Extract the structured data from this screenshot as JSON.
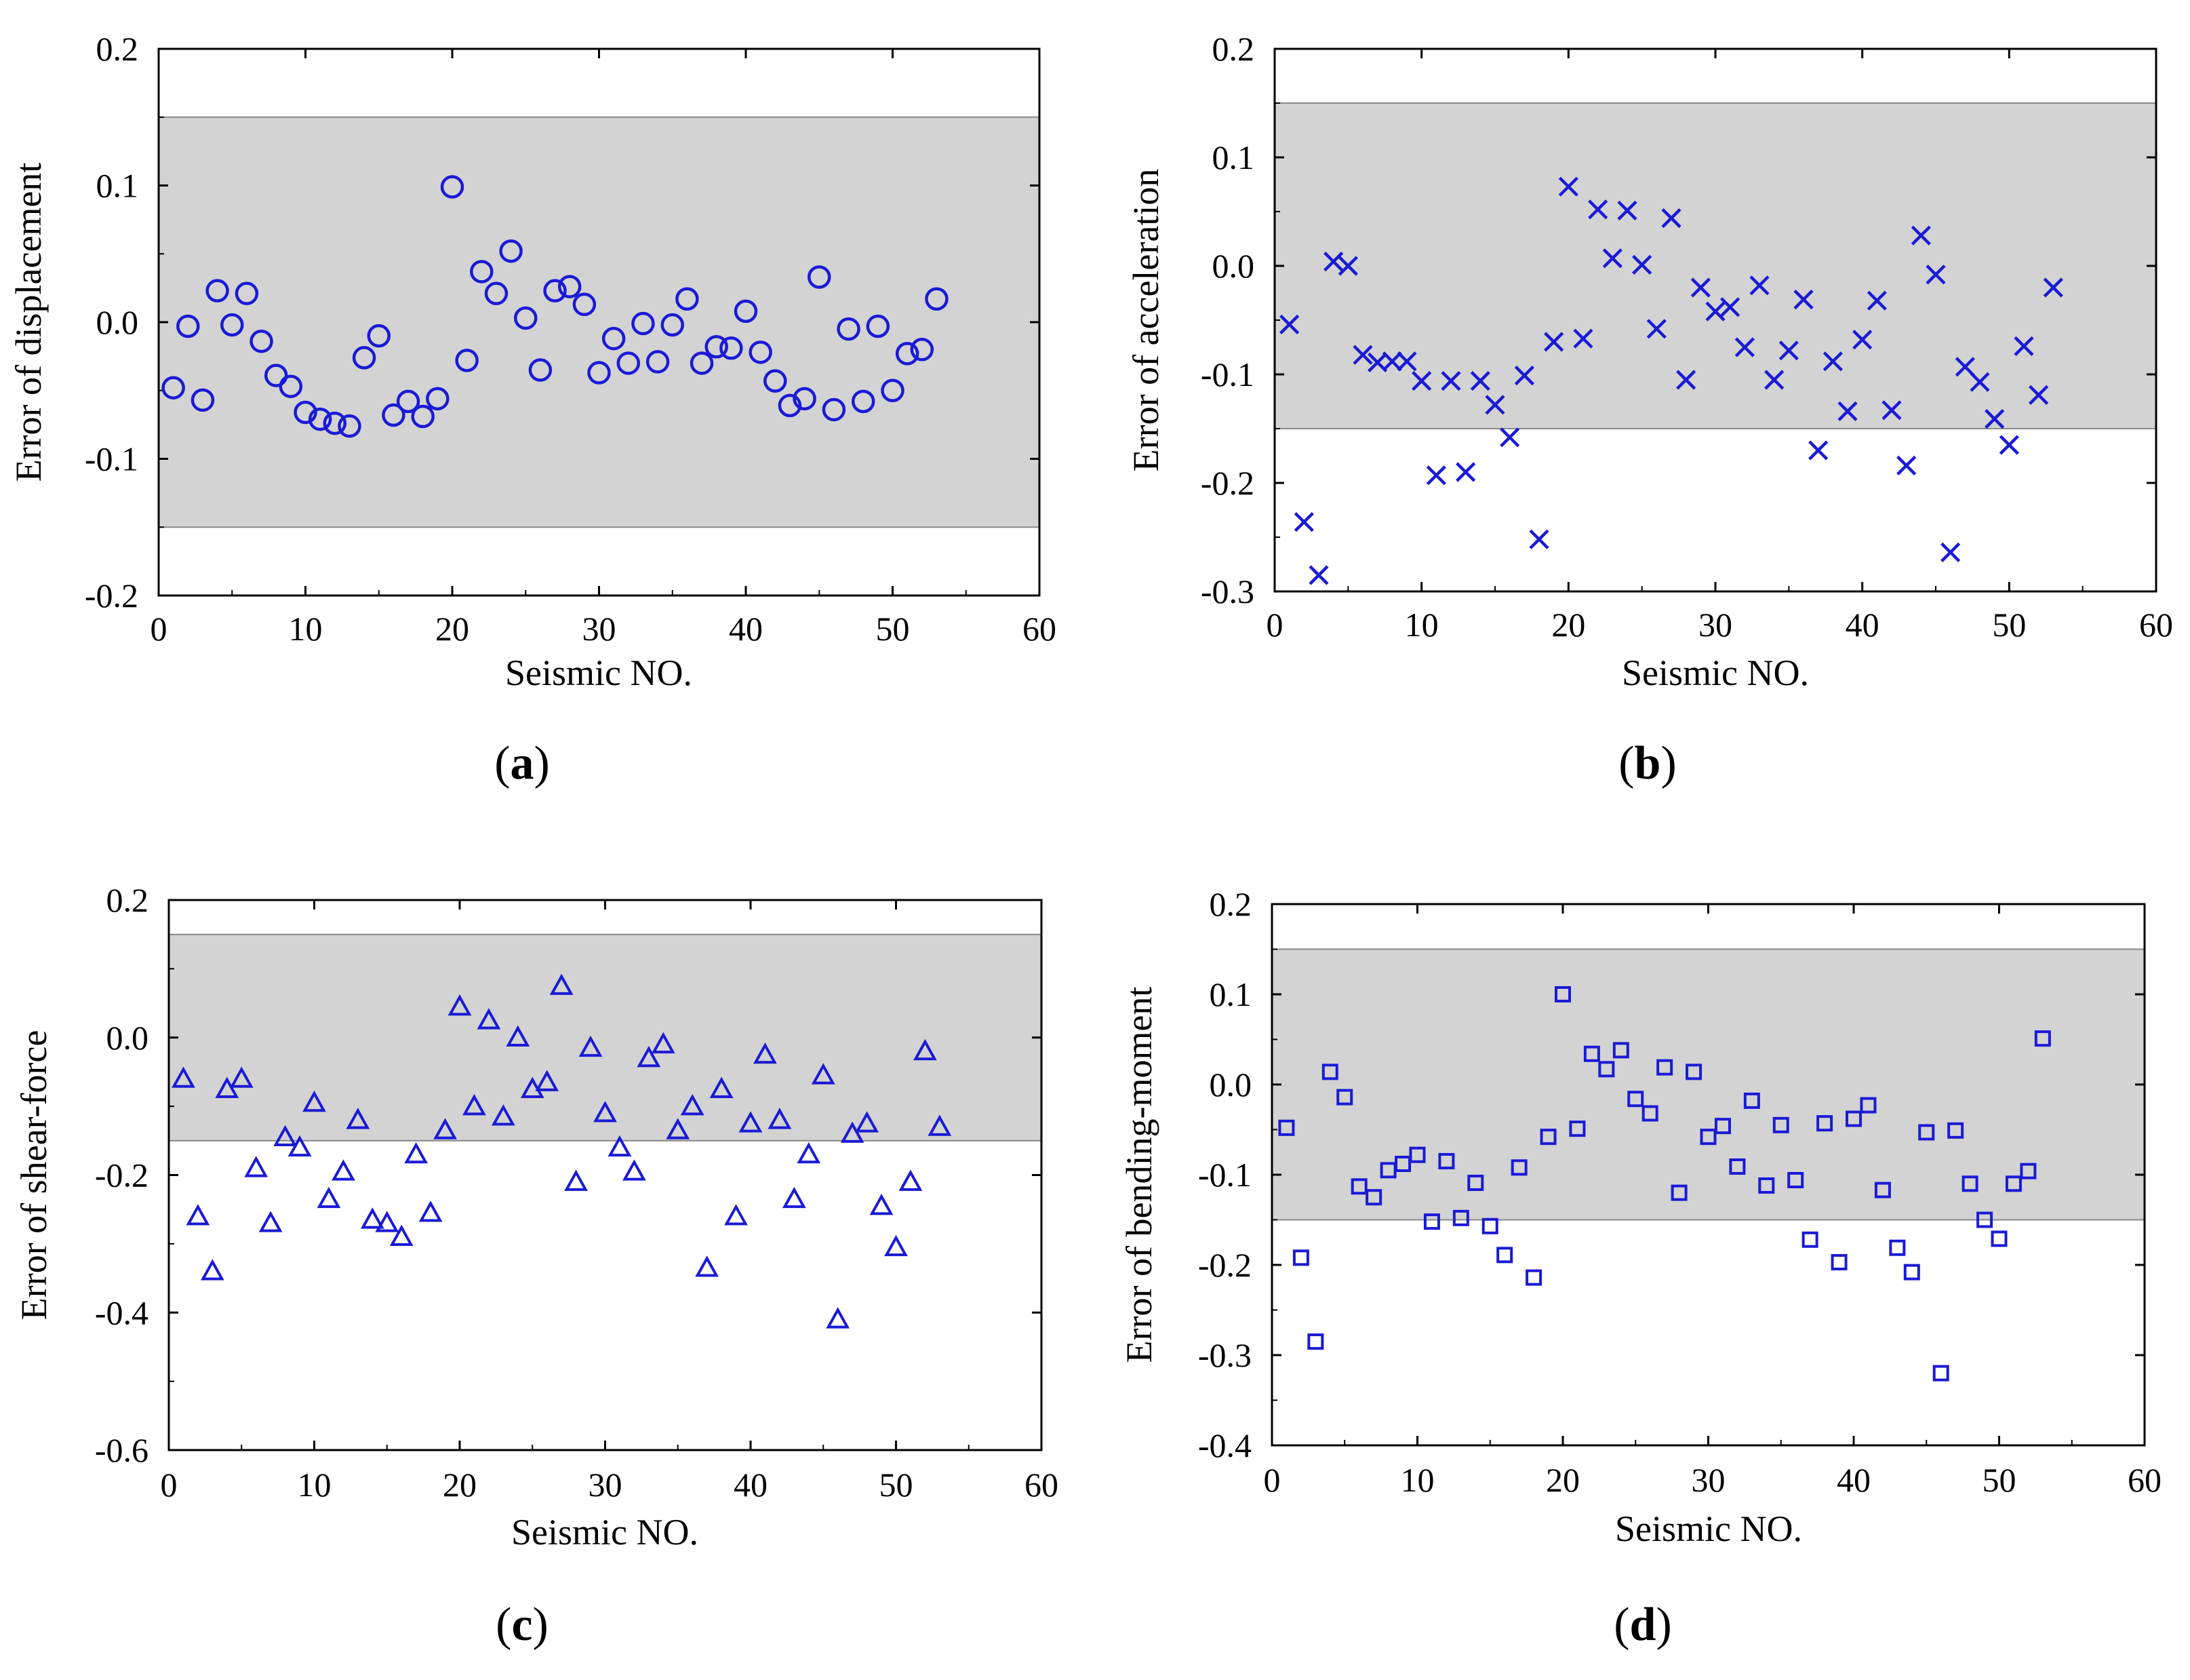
{
  "figure": {
    "marker_color": "#1a1ad6",
    "band_color": "#d3d3d3",
    "band_range": [
      -0.15,
      0.15
    ]
  },
  "chart_data": [
    {
      "id": "a",
      "type": "scatter",
      "panel_label": "a",
      "xlabel": "Seismic NO.",
      "ylabel": "Error of displacement",
      "xlim": [
        0,
        60
      ],
      "ylim": [
        -0.2,
        0.2
      ],
      "xticks": [
        0,
        10,
        20,
        30,
        40,
        50,
        60
      ],
      "xtick_labels": [
        "0",
        "10",
        "20",
        "30",
        "40",
        "50",
        "60"
      ],
      "yticks": [
        -0.2,
        -0.1,
        0.0,
        0.1,
        0.2
      ],
      "ytick_labels": [
        "-0.2",
        "-0.1",
        "0.0",
        "0.1",
        "0.2"
      ],
      "marker": "circle",
      "band": [
        -0.15,
        0.15
      ],
      "series": [
        {
          "name": "displacement error",
          "x": [
            1,
            2,
            3,
            4,
            5,
            6,
            7,
            8,
            9,
            10,
            11,
            12,
            13,
            14,
            15,
            16,
            17,
            18,
            19,
            20,
            21,
            22,
            23,
            24,
            25,
            26,
            27,
            28,
            29,
            30,
            31,
            32,
            33,
            34,
            35,
            36,
            37,
            38,
            39,
            40,
            41,
            42,
            43,
            44,
            45,
            46,
            47,
            48,
            49,
            50,
            51,
            52,
            53
          ],
          "y": [
            -0.048,
            -0.003,
            -0.057,
            0.023,
            -0.002,
            0.021,
            -0.014,
            -0.039,
            -0.047,
            -0.066,
            -0.071,
            -0.074,
            -0.076,
            -0.026,
            -0.01,
            -0.068,
            -0.058,
            -0.069,
            -0.056,
            0.099,
            -0.028,
            0.037,
            0.021,
            0.052,
            0.003,
            -0.035,
            0.023,
            0.026,
            0.013,
            -0.037,
            -0.012,
            -0.03,
            -0.001,
            -0.029,
            -0.002,
            0.017,
            -0.03,
            -0.018,
            -0.019,
            0.008,
            -0.022,
            -0.043,
            -0.061,
            -0.056,
            0.033,
            -0.064,
            -0.005,
            -0.058,
            -0.003,
            -0.05,
            -0.023,
            -0.02,
            0.017
          ]
        }
      ]
    },
    {
      "id": "b",
      "type": "scatter",
      "panel_label": "b",
      "xlabel": "Seismic NO.",
      "ylabel": "Error of acceleration",
      "xlim": [
        0,
        60
      ],
      "ylim": [
        -0.3,
        0.2
      ],
      "xticks": [
        0,
        10,
        20,
        30,
        40,
        50,
        60
      ],
      "xtick_labels": [
        "0",
        "10",
        "20",
        "30",
        "40",
        "50",
        "60"
      ],
      "yticks": [
        -0.3,
        -0.2,
        -0.1,
        0.0,
        0.1,
        0.2
      ],
      "ytick_labels": [
        "-0.3",
        "-0.2",
        "-0.1",
        "0.0",
        "0.1",
        "0.2"
      ],
      "marker": "x",
      "band": [
        -0.15,
        0.15
      ],
      "series": [
        {
          "name": "acceleration error",
          "x": [
            1,
            2,
            3,
            4,
            5,
            6,
            7,
            8,
            9,
            10,
            11,
            12,
            13,
            14,
            15,
            16,
            17,
            18,
            19,
            20,
            21,
            22,
            23,
            24,
            25,
            26,
            27,
            28,
            29,
            30,
            31,
            32,
            33,
            34,
            35,
            36,
            37,
            38,
            39,
            40,
            41,
            42,
            43,
            44,
            45,
            46,
            47,
            48,
            49,
            50,
            51,
            52,
            53
          ],
          "y": [
            -0.054,
            -0.236,
            -0.285,
            0.004,
            0.0,
            -0.082,
            -0.089,
            -0.088,
            -0.088,
            -0.106,
            -0.193,
            -0.106,
            -0.19,
            -0.106,
            -0.128,
            -0.158,
            -0.101,
            -0.252,
            -0.07,
            0.073,
            -0.067,
            0.052,
            0.007,
            0.051,
            0.001,
            -0.058,
            0.044,
            -0.105,
            -0.02,
            -0.042,
            -0.038,
            -0.075,
            -0.018,
            -0.105,
            -0.078,
            -0.031,
            -0.17,
            -0.088,
            -0.134,
            -0.068,
            -0.032,
            -0.133,
            -0.184,
            0.028,
            -0.008,
            -0.264,
            -0.093,
            -0.107,
            -0.141,
            -0.165,
            -0.074,
            -0.119,
            -0.02
          ]
        }
      ]
    },
    {
      "id": "c",
      "type": "scatter",
      "panel_label": "c",
      "xlabel": "Seismic NO.",
      "ylabel": "Error of shear-force",
      "xlim": [
        0,
        60
      ],
      "ylim": [
        -0.6,
        0.2
      ],
      "xticks": [
        0,
        10,
        20,
        30,
        40,
        50,
        60
      ],
      "xtick_labels": [
        "0",
        "10",
        "20",
        "30",
        "40",
        "50",
        "60"
      ],
      "yticks": [
        -0.6,
        -0.4,
        -0.2,
        0.0,
        0.2
      ],
      "ytick_labels": [
        "-0.6",
        "-0.4",
        "-0.2",
        "0.0",
        "0.2"
      ],
      "marker": "triangle",
      "band": [
        -0.15,
        0.15
      ],
      "series": [
        {
          "name": "shear-force error",
          "x": [
            1,
            2,
            3,
            4,
            5,
            6,
            7,
            8,
            9,
            10,
            11,
            12,
            13,
            14,
            15,
            16,
            17,
            18,
            19,
            20,
            21,
            22,
            23,
            24,
            25,
            26,
            27,
            28,
            29,
            30,
            31,
            32,
            33,
            34,
            35,
            36,
            37,
            38,
            39,
            40,
            41,
            42,
            43,
            44,
            45,
            46,
            47,
            48,
            49,
            50,
            51,
            52,
            53
          ],
          "y": [
            -0.06,
            -0.26,
            -0.34,
            -0.075,
            -0.06,
            -0.19,
            -0.27,
            -0.145,
            -0.16,
            -0.095,
            -0.235,
            -0.195,
            -0.12,
            -0.265,
            -0.27,
            -0.29,
            -0.17,
            -0.255,
            -0.135,
            0.045,
            -0.1,
            0.025,
            -0.115,
            0.0,
            -0.075,
            -0.065,
            0.075,
            -0.21,
            -0.015,
            -0.11,
            -0.16,
            -0.195,
            -0.03,
            -0.01,
            -0.135,
            -0.1,
            -0.335,
            -0.075,
            -0.26,
            -0.125,
            -0.025,
            -0.12,
            -0.235,
            -0.17,
            -0.055,
            -0.41,
            -0.14,
            -0.125,
            -0.245,
            -0.305,
            -0.21,
            -0.02,
            -0.13
          ]
        }
      ]
    },
    {
      "id": "d",
      "type": "scatter",
      "panel_label": "d",
      "xlabel": "Seismic NO.",
      "ylabel": "Error of bending-moment",
      "xlim": [
        0,
        60
      ],
      "ylim": [
        -0.4,
        0.2
      ],
      "xticks": [
        0,
        10,
        20,
        30,
        40,
        50,
        60
      ],
      "xtick_labels": [
        "0",
        "10",
        "20",
        "30",
        "40",
        "50",
        "60"
      ],
      "yticks": [
        -0.4,
        -0.3,
        -0.2,
        -0.1,
        0.0,
        0.1,
        0.2
      ],
      "ytick_labels": [
        "-0.4",
        "-0.3",
        "-0.2",
        "-0.1",
        "0.0",
        "0.1",
        "0.2"
      ],
      "marker": "square",
      "band": [
        -0.15,
        0.15
      ],
      "series": [
        {
          "name": "bending-moment error",
          "x": [
            1,
            2,
            3,
            4,
            5,
            6,
            7,
            8,
            9,
            10,
            11,
            12,
            13,
            14,
            15,
            16,
            17,
            18,
            19,
            20,
            21,
            22,
            23,
            24,
            25,
            26,
            27,
            28,
            29,
            30,
            31,
            32,
            33,
            34,
            35,
            36,
            37,
            38,
            39,
            40,
            41,
            42,
            43,
            44,
            45,
            46,
            47,
            48,
            49,
            50,
            51,
            52,
            53
          ],
          "y": [
            -0.048,
            -0.192,
            -0.285,
            0.014,
            -0.014,
            -0.113,
            -0.125,
            -0.095,
            -0.088,
            -0.078,
            -0.152,
            -0.085,
            -0.148,
            -0.109,
            -0.157,
            -0.189,
            -0.092,
            -0.214,
            -0.058,
            0.1,
            -0.049,
            0.034,
            0.017,
            0.038,
            -0.016,
            -0.032,
            0.019,
            -0.12,
            0.014,
            -0.058,
            -0.046,
            -0.091,
            -0.018,
            -0.112,
            -0.045,
            -0.106,
            -0.172,
            -0.043,
            -0.197,
            -0.038,
            -0.023,
            -0.117,
            -0.181,
            -0.208,
            -0.053,
            -0.32,
            -0.051,
            -0.11,
            -0.15,
            -0.171,
            -0.11,
            -0.096,
            0.051
          ]
        }
      ]
    }
  ]
}
